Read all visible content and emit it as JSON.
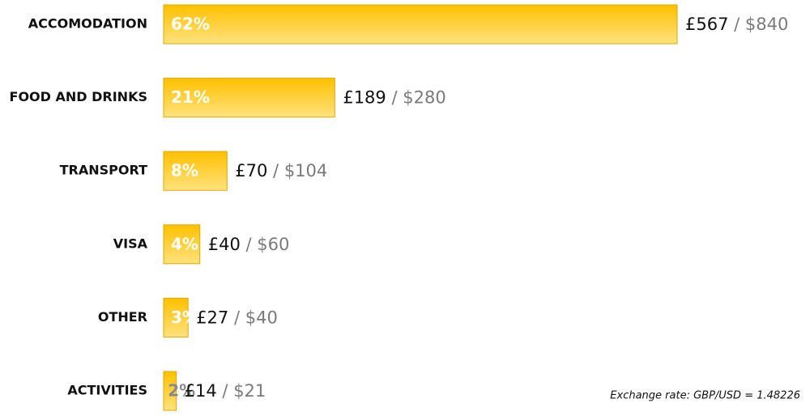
{
  "chart_data": {
    "type": "bar",
    "categories": [
      "ACCOMODATION",
      "FOOD AND DRINKS",
      "TRANSPORT",
      "VISA",
      "OTHER",
      "ACTIVITIES"
    ],
    "values": [
      567,
      189,
      70,
      40,
      27,
      14
    ],
    "value_labels": [
      "£567",
      "£189",
      "£70",
      "£40",
      "£27",
      "£14"
    ],
    "usd_values": [
      840,
      280,
      104,
      60,
      40,
      21
    ],
    "usd_labels": [
      "$840",
      "$280",
      "$104",
      "$60",
      "$40",
      "$21"
    ],
    "shares": [
      62,
      21,
      8,
      4,
      3,
      2
    ],
    "share_labels": [
      "62%",
      "21%",
      "8%",
      "4%",
      "3%",
      "2%"
    ],
    "separator": "/",
    "color": "#ffc000",
    "note": "Exchange rate: GBP/USD = 1.48226"
  }
}
